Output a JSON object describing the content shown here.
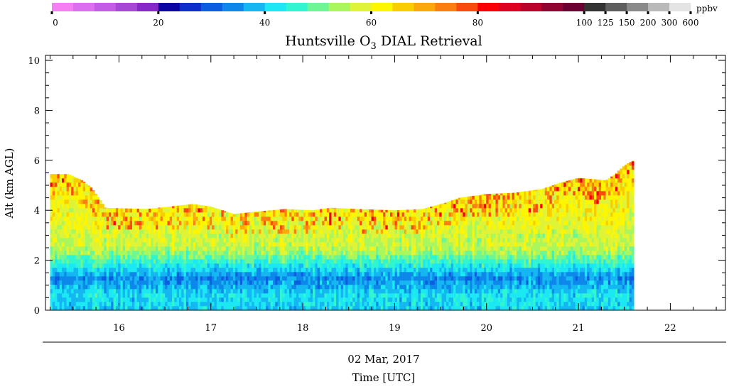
{
  "chart_data": {
    "type": "heatmap",
    "title": "Huntsville O",
    "title_subscript": "3",
    "title_suffix": " DIAL Retrieval",
    "ylabel": "Alt (km AGL)",
    "xlabel_date": "02 Mar, 2017",
    "xlabel": "Time [UTC]",
    "colorbar_unit": "ppbv",
    "colorbar_labels": [
      "0",
      "20",
      "40",
      "60",
      "80",
      "100",
      "125",
      "150",
      "200",
      "300",
      "600"
    ],
    "colorbar_colors": [
      "#f37ff2",
      "#dc6ef0",
      "#c35de6",
      "#a747d6",
      "#8828c9",
      "#0a05a3",
      "#0c2fcb",
      "#0b5ee0",
      "#0d88ea",
      "#14b7f1",
      "#1be8f3",
      "#30f5d1",
      "#6ef594",
      "#a9f75c",
      "#dff337",
      "#fdf600",
      "#f9cd00",
      "#fba80b",
      "#fb7e10",
      "#fa4b0e",
      "#f80006",
      "#dd0021",
      "#bb002a",
      "#8f0430",
      "#6b0033",
      "#333333",
      "#5e5e5e",
      "#8a8a8a",
      "#b9b9b9",
      "#e4e4e4"
    ],
    "x_ticks": [
      "16",
      "17",
      "18",
      "19",
      "20",
      "21",
      "22"
    ],
    "y_ticks": [
      "0",
      "2",
      "4",
      "6",
      "8",
      "10"
    ],
    "xlim": [
      15.2,
      22.6
    ],
    "ylim": [
      0,
      10.2
    ],
    "grid": false,
    "data_time_range": [
      15.25,
      21.6
    ],
    "top_profile": {
      "x": [
        15.25,
        15.45,
        15.6,
        15.7,
        15.8,
        15.85,
        16.3,
        16.8,
        17.0,
        17.25,
        17.5,
        17.8,
        18.1,
        18.3,
        18.6,
        19.0,
        19.3,
        19.55,
        19.7,
        20.0,
        20.3,
        20.6,
        20.8,
        21.0,
        21.3,
        21.4,
        21.5,
        21.6
      ],
      "y": [
        5.45,
        5.45,
        5.2,
        4.9,
        4.4,
        4.1,
        4.05,
        4.25,
        4.15,
        3.85,
        3.95,
        4.05,
        4.0,
        4.1,
        4.05,
        4.0,
        4.05,
        4.3,
        4.5,
        4.65,
        4.7,
        4.85,
        5.1,
        5.3,
        5.2,
        5.45,
        5.8,
        6.0
      ]
    },
    "vertical_profile": {
      "altitude_km": [
        0.0,
        0.6,
        1.0,
        1.3,
        1.6,
        2.0,
        2.3,
        2.6,
        3.0,
        3.5,
        4.0,
        4.5,
        5.0,
        6.0
      ],
      "ozone_ppbv": [
        40,
        42,
        37,
        34,
        40,
        47,
        53,
        57,
        57,
        60,
        61,
        62,
        63,
        64
      ]
    }
  }
}
